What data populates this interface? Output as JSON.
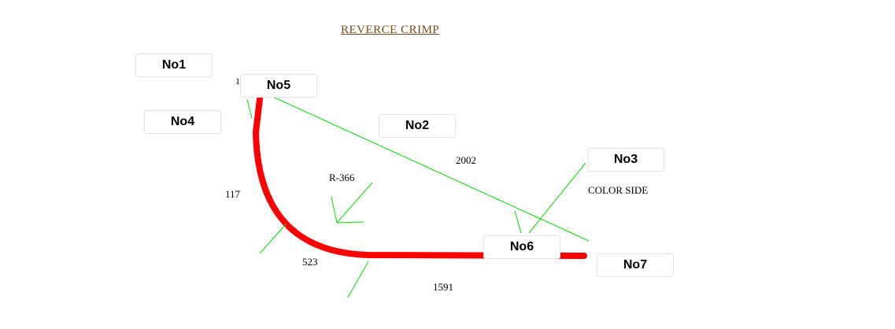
{
  "title": "REVERCE CRIMP",
  "colors": {
    "wire": "#ff0000",
    "leader": "#00dd00",
    "title": "#7a4a1e"
  },
  "dimensions": {
    "straight_length": "2002",
    "radius": "R-366",
    "vertical_length": "117",
    "arc_length": "523",
    "bottom_length": "1591",
    "color_side": "COLOR SIDE",
    "partial_label": "1"
  },
  "tags": {
    "no1": "No1",
    "no2": "No2",
    "no3": "No3",
    "no4": "No4",
    "no5": "No5",
    "no6": "No6",
    "no7": "No7"
  }
}
